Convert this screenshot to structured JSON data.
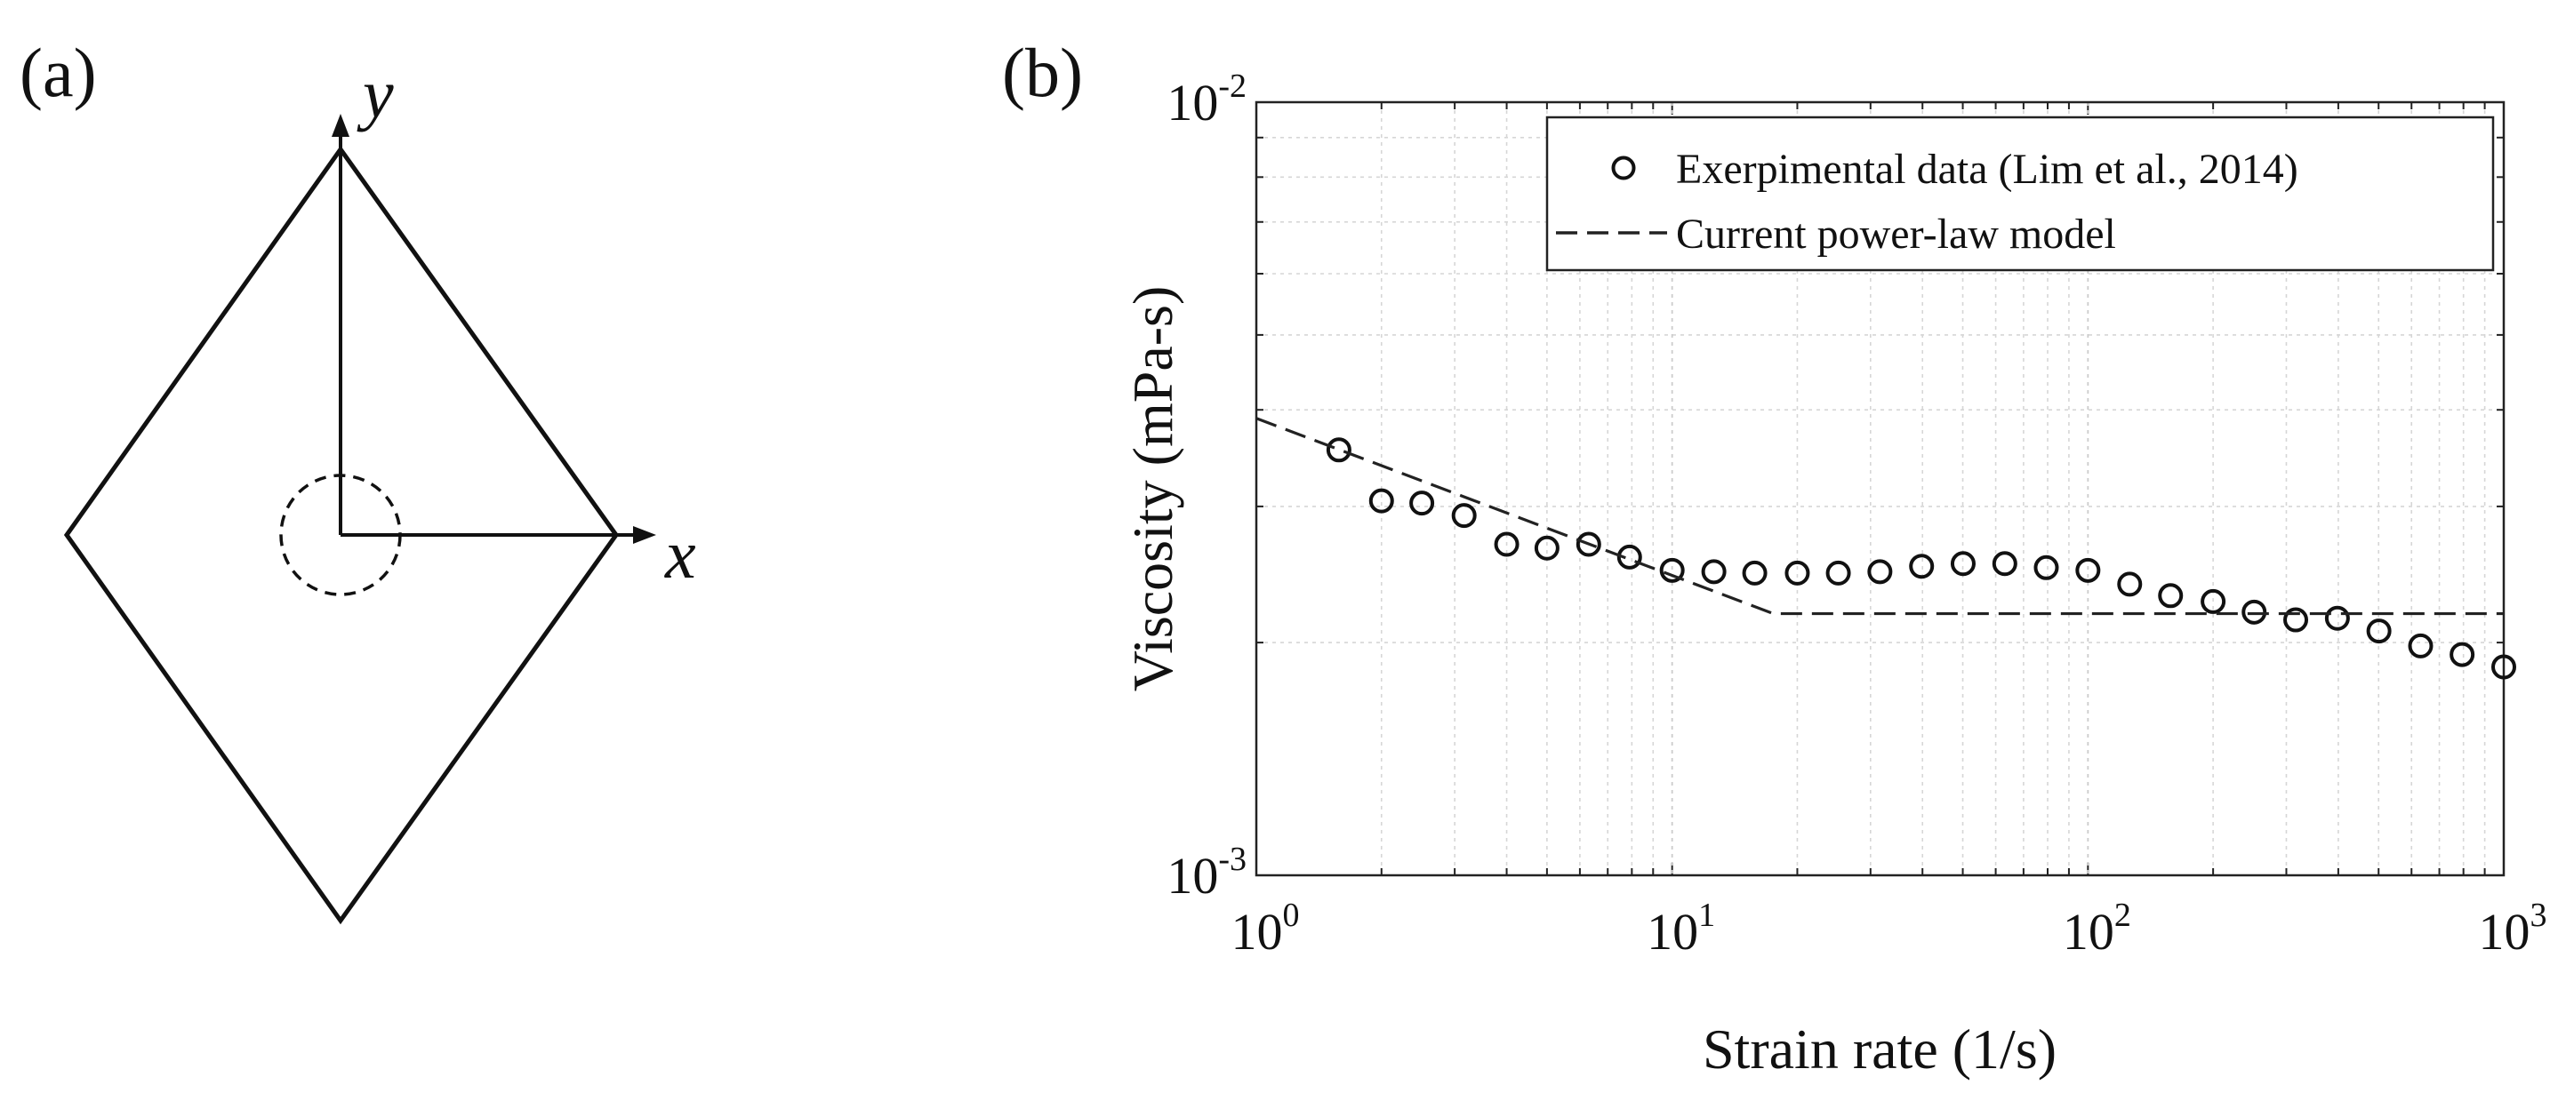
{
  "figure": {
    "panel_a_label": "(a)",
    "panel_b_label": "(b)"
  },
  "diagram": {
    "x_axis_label": "x",
    "y_axis_label": "y"
  },
  "chart_data": {
    "type": "scatter",
    "title": "",
    "xlabel": "Strain rate (1/s)",
    "ylabel": "Viscosity (mPa-s)",
    "xscale": "log",
    "yscale": "log",
    "xlim": [
      1,
      1000
    ],
    "ylim": [
      0.001,
      0.01
    ],
    "grid": true,
    "legend_position": "top-right",
    "x_ticks": [
      {
        "base": "10",
        "exp": "0",
        "value": 1
      },
      {
        "base": "10",
        "exp": "1",
        "value": 10
      },
      {
        "base": "10",
        "exp": "2",
        "value": 100
      },
      {
        "base": "10",
        "exp": "3",
        "value": 1000
      }
    ],
    "y_ticks": [
      {
        "base": "10",
        "exp": "-3",
        "value": 0.001
      },
      {
        "base": "10",
        "exp": "-2",
        "value": 0.01
      }
    ],
    "series": [
      {
        "name": "Exerpimental data (Lim et al., 2014)",
        "style": "open-circle",
        "x": [
          1.58,
          2.0,
          2.5,
          3.16,
          4.0,
          5.0,
          6.3,
          7.9,
          10.0,
          12.6,
          15.8,
          20.0,
          25.1,
          31.6,
          39.8,
          50.1,
          63.1,
          79.4,
          100,
          126,
          158,
          200,
          251,
          316,
          398,
          501,
          631,
          794,
          1000
        ],
        "y": [
          0.00355,
          0.00305,
          0.00303,
          0.00292,
          0.00268,
          0.00265,
          0.00268,
          0.00258,
          0.00248,
          0.00247,
          0.00246,
          0.00246,
          0.00246,
          0.00247,
          0.00251,
          0.00253,
          0.00253,
          0.0025,
          0.00248,
          0.00238,
          0.0023,
          0.00226,
          0.00219,
          0.00214,
          0.00215,
          0.00207,
          0.00198,
          0.00193,
          0.00186
        ]
      },
      {
        "name": "Current power-law model",
        "style": "dashed-line",
        "x": [
          1,
          17.5,
          1000
        ],
        "y": [
          0.0039,
          0.00218,
          0.00218
        ]
      }
    ]
  }
}
